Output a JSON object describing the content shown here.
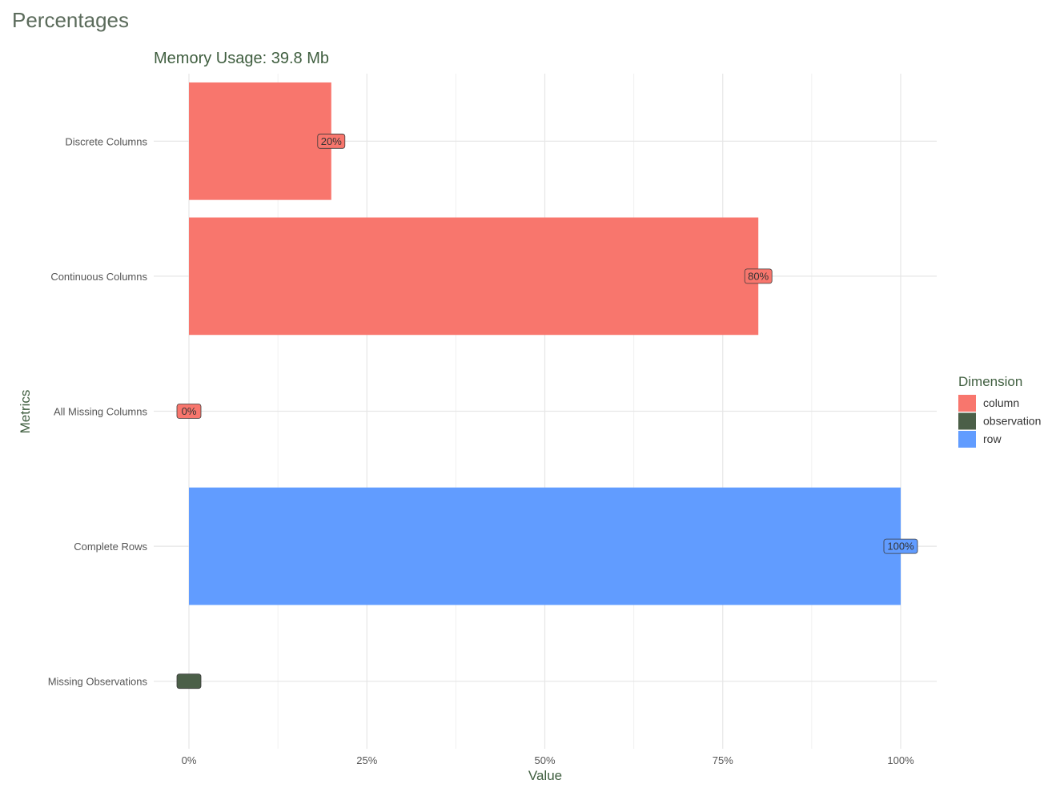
{
  "page_title": "Percentages",
  "chart_data": {
    "type": "bar",
    "orientation": "horizontal",
    "title": "Memory Usage: 39.8 Mb",
    "xlabel": "Value",
    "ylabel": "Metrics",
    "xlim": [
      0,
      1
    ],
    "x_ticks": [
      "0%",
      "25%",
      "50%",
      "75%",
      "100%"
    ],
    "x_tick_values": [
      0,
      0.25,
      0.5,
      0.75,
      1
    ],
    "grid": true,
    "legend": {
      "title": "Dimension",
      "placement": "right",
      "items": [
        {
          "label": "column",
          "color": "#F8766D"
        },
        {
          "label": "observation",
          "color": "#4B5F48"
        },
        {
          "label": "row",
          "color": "#619CFF"
        }
      ]
    },
    "categories": [
      "Discrete Columns",
      "Continuous Columns",
      "All Missing Columns",
      "Complete Rows",
      "Missing Observations"
    ],
    "values": [
      0.2,
      0.8,
      0,
      1,
      0
    ],
    "dimensions": [
      "column",
      "column",
      "column",
      "row",
      "observation"
    ],
    "data_labels": [
      "20%",
      "80%",
      "0%",
      "100%",
      ""
    ]
  }
}
